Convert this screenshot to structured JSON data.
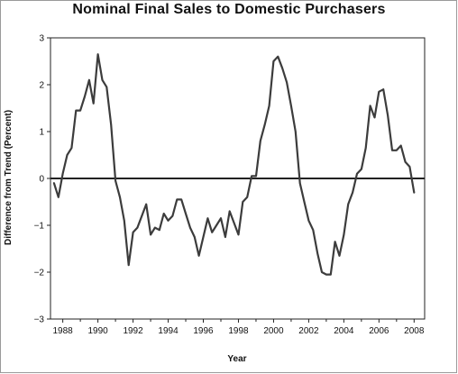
{
  "chart_data": {
    "type": "line",
    "title": "Nominal Final Sales to Domestic Purchasers",
    "xlabel": "Year",
    "ylabel": "Difference from Trend (Percent)",
    "xlim": [
      1987.3,
      2008.6
    ],
    "ylim": [
      -3,
      3
    ],
    "xticks": [
      1988,
      1990,
      1992,
      1994,
      1996,
      1998,
      2000,
      2002,
      2004,
      2006,
      2008
    ],
    "xtick_labels": [
      "1988",
      "1990",
      "1992",
      "1994",
      "1996",
      "1998",
      "2000",
      "2002",
      "2004",
      "2006",
      "2008"
    ],
    "yticks": [
      -3,
      -2,
      -1,
      0,
      1,
      2,
      3
    ],
    "ytick_labels": [
      "−3",
      "−2",
      "−1",
      "0",
      "1",
      "2",
      "3"
    ],
    "reference_line": 0,
    "grid": false,
    "series": [
      {
        "color": "#3c3c3c",
        "x": [
          1987.5,
          1987.75,
          1988.0,
          1988.25,
          1988.5,
          1988.75,
          1989.0,
          1989.25,
          1989.5,
          1989.75,
          1990.0,
          1990.25,
          1990.5,
          1990.75,
          1991.0,
          1991.25,
          1991.5,
          1991.75,
          1992.0,
          1992.25,
          1992.5,
          1992.75,
          1993.0,
          1993.25,
          1993.5,
          1993.75,
          1994.0,
          1994.25,
          1994.5,
          1994.75,
          1995.0,
          1995.25,
          1995.5,
          1995.75,
          1996.0,
          1996.25,
          1996.5,
          1996.75,
          1997.0,
          1997.25,
          1997.5,
          1997.75,
          1998.0,
          1998.25,
          1998.5,
          1998.75,
          1999.0,
          1999.25,
          1999.5,
          1999.75,
          2000.0,
          2000.25,
          2000.5,
          2000.75,
          2001.0,
          2001.25,
          2001.5,
          2001.75,
          2002.0,
          2002.25,
          2002.5,
          2002.75,
          2003.0,
          2003.25,
          2003.5,
          2003.75,
          2004.0,
          2004.25,
          2004.5,
          2004.75,
          2005.0,
          2005.25,
          2005.5,
          2005.75,
          2006.0,
          2006.25,
          2006.5,
          2006.75,
          2007.0,
          2007.25,
          2007.5,
          2007.75,
          2008.0
        ],
        "y": [
          -0.1,
          -0.4,
          0.1,
          0.5,
          0.65,
          1.45,
          1.45,
          1.75,
          2.1,
          1.6,
          2.65,
          2.1,
          1.95,
          1.15,
          -0.05,
          -0.4,
          -0.9,
          -1.85,
          -1.15,
          -1.05,
          -0.8,
          -0.55,
          -1.2,
          -1.05,
          -1.1,
          -0.75,
          -0.9,
          -0.8,
          -0.45,
          -0.45,
          -0.75,
          -1.05,
          -1.25,
          -1.65,
          -1.25,
          -0.85,
          -1.15,
          -1.0,
          -0.85,
          -1.25,
          -0.7,
          -0.95,
          -1.2,
          -0.5,
          -0.4,
          0.05,
          0.05,
          0.8,
          1.15,
          1.55,
          2.5,
          2.6,
          2.35,
          2.05,
          1.55,
          1.0,
          -0.1,
          -0.5,
          -0.9,
          -1.1,
          -1.6,
          -2.0,
          -2.05,
          -2.05,
          -1.35,
          -1.65,
          -1.2,
          -0.55,
          -0.3,
          0.1,
          0.2,
          0.65,
          1.55,
          1.3,
          1.85,
          1.9,
          1.35,
          0.6,
          0.6,
          0.7,
          0.35,
          0.25,
          -0.3
        ]
      }
    ]
  }
}
